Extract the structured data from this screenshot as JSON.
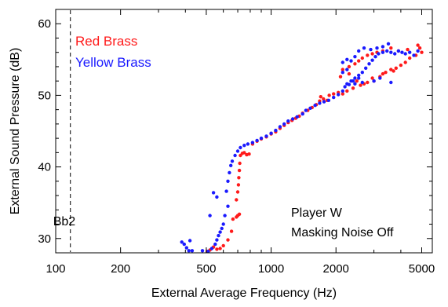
{
  "chart_data": {
    "type": "scatter",
    "title": "",
    "xlabel": "External Average Frequency (Hz)",
    "ylabel": "External Sound Pressure (dB)",
    "xscale": "log",
    "xlim": [
      100,
      5600
    ],
    "ylim": [
      28,
      62
    ],
    "x_ticks": [
      100,
      200,
      500,
      1000,
      2000,
      5000
    ],
    "x_tick_labels": [
      "100",
      "200",
      "500",
      "1000",
      "2000",
      "5000"
    ],
    "y_ticks": [
      30,
      40,
      50,
      60
    ],
    "y_tick_labels": [
      "30",
      "40",
      "50",
      "60"
    ],
    "grid": false,
    "legend_position": "top-left",
    "reference_line": {
      "x": 117,
      "label": "Bb2",
      "style": "dashed"
    },
    "annotation": [
      "Player W",
      "Masking Noise Off"
    ],
    "series": [
      {
        "name": "Red Brass",
        "color": "#ff1a1a",
        "points": [
          [
            505,
            28.2
          ],
          [
            520,
            28.4
          ],
          [
            540,
            28.8
          ],
          [
            560,
            28.5
          ],
          [
            580,
            28.6
          ],
          [
            600,
            29.0
          ],
          [
            630,
            29.8
          ],
          [
            655,
            31.0
          ],
          [
            665,
            32.7
          ],
          [
            690,
            33.0
          ],
          [
            700,
            33.2
          ],
          [
            712,
            33.4
          ],
          [
            690,
            35.4
          ],
          [
            700,
            36.5
          ],
          [
            705,
            37.5
          ],
          [
            708,
            38.5
          ],
          [
            712,
            39.5
          ],
          [
            715,
            40.5
          ],
          [
            720,
            41.6
          ],
          [
            735,
            41.9
          ],
          [
            750,
            42.0
          ],
          [
            770,
            41.7
          ],
          [
            790,
            41.8
          ],
          [
            820,
            43.2
          ],
          [
            860,
            43.6
          ],
          [
            900,
            43.9
          ],
          [
            950,
            44.2
          ],
          [
            1000,
            44.6
          ],
          [
            1050,
            44.9
          ],
          [
            1100,
            45.4
          ],
          [
            1150,
            45.8
          ],
          [
            1200,
            46.2
          ],
          [
            1250,
            46.5
          ],
          [
            1300,
            46.8
          ],
          [
            1350,
            47.1
          ],
          [
            1400,
            47.5
          ],
          [
            1480,
            47.9
          ],
          [
            1550,
            48.3
          ],
          [
            1620,
            48.7
          ],
          [
            1680,
            49.2
          ],
          [
            1750,
            49.5
          ],
          [
            1820,
            49.3
          ],
          [
            1700,
            49.8
          ],
          [
            1860,
            50.0
          ],
          [
            1950,
            50.2
          ],
          [
            2050,
            50.4
          ],
          [
            2150,
            50.2
          ],
          [
            2250,
            50.6
          ],
          [
            2400,
            51.0
          ],
          [
            2600,
            51.4
          ],
          [
            2800,
            51.8
          ],
          [
            3000,
            52.0
          ],
          [
            3200,
            52.6
          ],
          [
            3400,
            53.2
          ],
          [
            3600,
            53.6
          ],
          [
            3800,
            53.8
          ],
          [
            4000,
            54.2
          ],
          [
            4200,
            54.6
          ],
          [
            4400,
            55.2
          ],
          [
            4700,
            55.6
          ],
          [
            4900,
            56.6
          ],
          [
            5000,
            56.0
          ],
          [
            4800,
            57.0
          ],
          [
            4300,
            56.4
          ],
          [
            3900,
            56.2
          ],
          [
            3600,
            56.6
          ],
          [
            3300,
            56.2
          ],
          [
            3100,
            56.0
          ],
          [
            2950,
            55.8
          ],
          [
            2800,
            55.6
          ],
          [
            2650,
            55.2
          ],
          [
            2550,
            54.8
          ],
          [
            2450,
            54.4
          ],
          [
            2300,
            54.0
          ],
          [
            2150,
            53.6
          ],
          [
            2100,
            52.6
          ],
          [
            2300,
            53.0
          ],
          [
            2500,
            52.0
          ],
          [
            2700,
            51.6
          ],
          [
            2950,
            52.4
          ],
          [
            3300,
            53.0
          ],
          [
            3700,
            53.4
          ]
        ]
      },
      {
        "name": "Yellow Brass",
        "color": "#1a1aff",
        "points": [
          [
            385,
            29.5
          ],
          [
            395,
            29.2
          ],
          [
            405,
            28.7
          ],
          [
            415,
            28.3
          ],
          [
            420,
            29.7
          ],
          [
            430,
            28.3
          ],
          [
            480,
            28.3
          ],
          [
            510,
            28.2
          ],
          [
            530,
            28.6
          ],
          [
            550,
            29.2
          ],
          [
            560,
            29.8
          ],
          [
            570,
            30.4
          ],
          [
            580,
            30.9
          ],
          [
            590,
            31.4
          ],
          [
            600,
            32.0
          ],
          [
            610,
            33.2
          ],
          [
            630,
            34.5
          ],
          [
            540,
            36.4
          ],
          [
            520,
            33.2
          ],
          [
            560,
            35.8
          ],
          [
            620,
            36.6
          ],
          [
            630,
            38.0
          ],
          [
            640,
            39.2
          ],
          [
            650,
            40.2
          ],
          [
            660,
            40.8
          ],
          [
            680,
            41.6
          ],
          [
            700,
            42.2
          ],
          [
            720,
            42.7
          ],
          [
            750,
            43.0
          ],
          [
            780,
            43.2
          ],
          [
            820,
            43.4
          ],
          [
            860,
            43.7
          ],
          [
            900,
            44.0
          ],
          [
            950,
            44.3
          ],
          [
            1000,
            44.7
          ],
          [
            1050,
            45.1
          ],
          [
            1100,
            45.6
          ],
          [
            1150,
            46.0
          ],
          [
            1200,
            46.4
          ],
          [
            1260,
            46.7
          ],
          [
            1320,
            47.0
          ],
          [
            1400,
            47.4
          ],
          [
            1450,
            47.9
          ],
          [
            1520,
            48.2
          ],
          [
            1600,
            48.6
          ],
          [
            1680,
            48.9
          ],
          [
            1760,
            49.1
          ],
          [
            1850,
            49.3
          ],
          [
            1950,
            49.7
          ],
          [
            2050,
            50.1
          ],
          [
            2150,
            50.6
          ],
          [
            2200,
            51.2
          ],
          [
            2250,
            51.6
          ],
          [
            2350,
            52.0
          ],
          [
            2450,
            52.4
          ],
          [
            2550,
            52.8
          ],
          [
            2650,
            53.2
          ],
          [
            2750,
            53.8
          ],
          [
            2850,
            54.4
          ],
          [
            2950,
            54.9
          ],
          [
            3050,
            55.4
          ],
          [
            3150,
            55.8
          ],
          [
            3300,
            56.0
          ],
          [
            3450,
            56.2
          ],
          [
            3600,
            56.0
          ],
          [
            3750,
            55.8
          ],
          [
            3900,
            56.2
          ],
          [
            4050,
            56.0
          ],
          [
            4200,
            55.8
          ],
          [
            4400,
            56.0
          ],
          [
            4600,
            55.6
          ],
          [
            4800,
            56.2
          ],
          [
            3500,
            57.2
          ],
          [
            3300,
            56.8
          ],
          [
            3100,
            56.6
          ],
          [
            2900,
            56.4
          ],
          [
            2700,
            56.6
          ],
          [
            2550,
            56.2
          ],
          [
            2450,
            55.4
          ],
          [
            2350,
            54.8
          ],
          [
            2250,
            55.0
          ],
          [
            2150,
            54.6
          ],
          [
            2250,
            53.6
          ],
          [
            2150,
            53.2
          ],
          [
            2400,
            52.0
          ],
          [
            2550,
            52.4
          ],
          [
            2300,
            51.5
          ],
          [
            2450,
            51.6
          ],
          [
            2650,
            51.8
          ],
          [
            3000,
            52.0
          ],
          [
            3200,
            52.4
          ],
          [
            3600,
            51.8
          ]
        ]
      }
    ]
  }
}
